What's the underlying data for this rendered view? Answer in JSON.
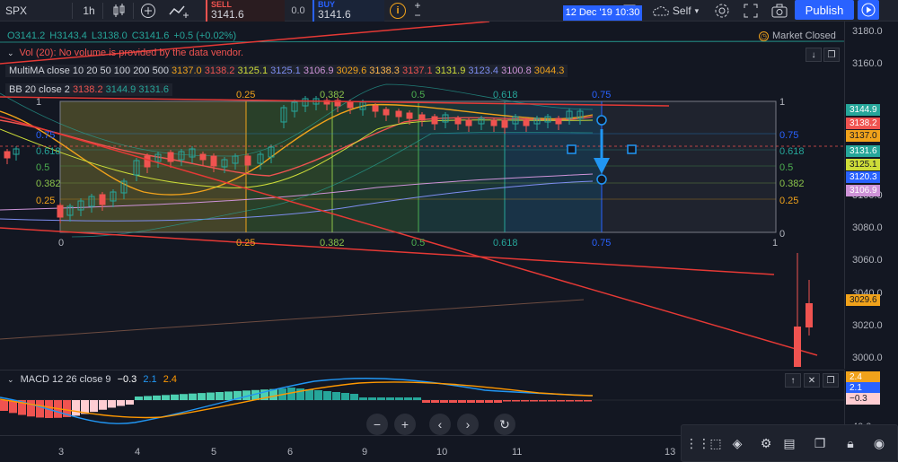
{
  "toolbar": {
    "symbol": "SPX",
    "interval": "1h",
    "sell_label": "SELL",
    "sell_price": "3141.6",
    "spread": "0.0",
    "buy_label": "BUY",
    "buy_price": "3141.6",
    "visibility": "Self",
    "publish_label": "Publish",
    "plus": "+",
    "minus": "−"
  },
  "legend": {
    "ohlc": [
      "O3141.2",
      "H3143.4",
      "L3138.0",
      "C3141.6",
      "+0.5 (+0.02%)"
    ],
    "volume": "Vol (20): No volume is provided by the data vendor.",
    "multima_title": "MultiMA close 10 20 50 100 200 500",
    "multima_values": [
      {
        "v": "3137.0",
        "c": "#f0a21b"
      },
      {
        "v": "3138.2",
        "c": "#ef5350"
      },
      {
        "v": "3125.1",
        "c": "#cddc39"
      },
      {
        "v": "3125.1",
        "c": "#7e8ef1"
      },
      {
        "v": "3106.9",
        "c": "#ce93d8"
      },
      {
        "v": "3029.6",
        "c": "#f0a21b"
      },
      {
        "v": "3138.3",
        "c": "#ffb74d"
      },
      {
        "v": "3137.1",
        "c": "#ef5350"
      },
      {
        "v": "3131.9",
        "c": "#cddc39"
      },
      {
        "v": "3123.4",
        "c": "#7e8ef1"
      },
      {
        "v": "3100.8",
        "c": "#ce93d8"
      },
      {
        "v": "3044.3",
        "c": "#f0a21b"
      }
    ],
    "bb_title": "BB 20 close 2",
    "bb_values": [
      {
        "v": "3138.2",
        "c": "#ef5350"
      },
      {
        "v": "3144.9",
        "c": "#26a69a"
      },
      {
        "v": "3131.6",
        "c": "#26a69a"
      }
    ],
    "market_status": "Market Closed"
  },
  "price_axis": {
    "labels": [
      "3180.0",
      "3160.0",
      "3100.0",
      "3080.0",
      "3060.0",
      "3040.0",
      "3020.0",
      "3000.0"
    ],
    "tags": [
      {
        "v": "3144.9",
        "c": "#26a69a"
      },
      {
        "v": "3138.2",
        "c": "#ef5350"
      },
      {
        "v": "3137.0",
        "c": "#f0a21b"
      },
      {
        "v": "3131.6",
        "c": "#26a69a"
      },
      {
        "v": "3125.1",
        "c": "#cddc39"
      },
      {
        "v": "3120.3",
        "c": "#2962ff"
      },
      {
        "v": "3106.9",
        "c": "#ce93d8"
      },
      {
        "v": "3029.6",
        "c": "#f0a21b"
      }
    ]
  },
  "fib": {
    "top_labels": [
      "0.25",
      "0.382",
      "0.5",
      "0.618",
      "0.75"
    ],
    "bottom_labels": [
      "0",
      "0.25",
      "0.382",
      "0.5",
      "0.618",
      "0.75",
      "1"
    ],
    "right_labels": [
      "1",
      "0.75",
      "0.618",
      "0.5",
      "0.382",
      "0.25",
      "0"
    ],
    "left_labels": [
      "1",
      "0.75",
      "0.618",
      "0.5",
      "0.382",
      "0.25"
    ]
  },
  "macd": {
    "title": "MACD 12 26 close 9",
    "v1": "−0.3",
    "v2": "2.1",
    "v3": "2.4",
    "tags": [
      {
        "v": "2.4",
        "c": "#f0a21b"
      },
      {
        "v": "2.1",
        "c": "#2962ff"
      },
      {
        "v": "−0.3",
        "c": "#ffcdd2"
      }
    ],
    "axis_label": "40.0"
  },
  "time_axis": {
    "labels": [
      "3",
      "4",
      "5",
      "6",
      "9",
      "10",
      "11",
      "13"
    ],
    "cursor": "12 Dec '19   10:30"
  }
}
